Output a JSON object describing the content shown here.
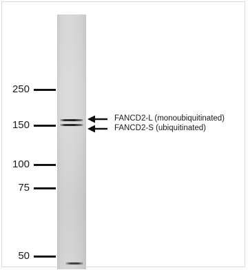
{
  "figure": {
    "markers": [
      {
        "label": "250"
      },
      {
        "label": "150"
      },
      {
        "label": "100"
      },
      {
        "label": "75"
      },
      {
        "label": "50"
      }
    ],
    "annotations": [
      {
        "label": "FANCD2-L (monoubiquitinated)"
      },
      {
        "label": "FANCD2-S (ubiquitinated)"
      }
    ],
    "colors": {
      "lane": "#d3d3d3",
      "band": "#1e1e1e",
      "text": "#1a1a1a"
    }
  }
}
